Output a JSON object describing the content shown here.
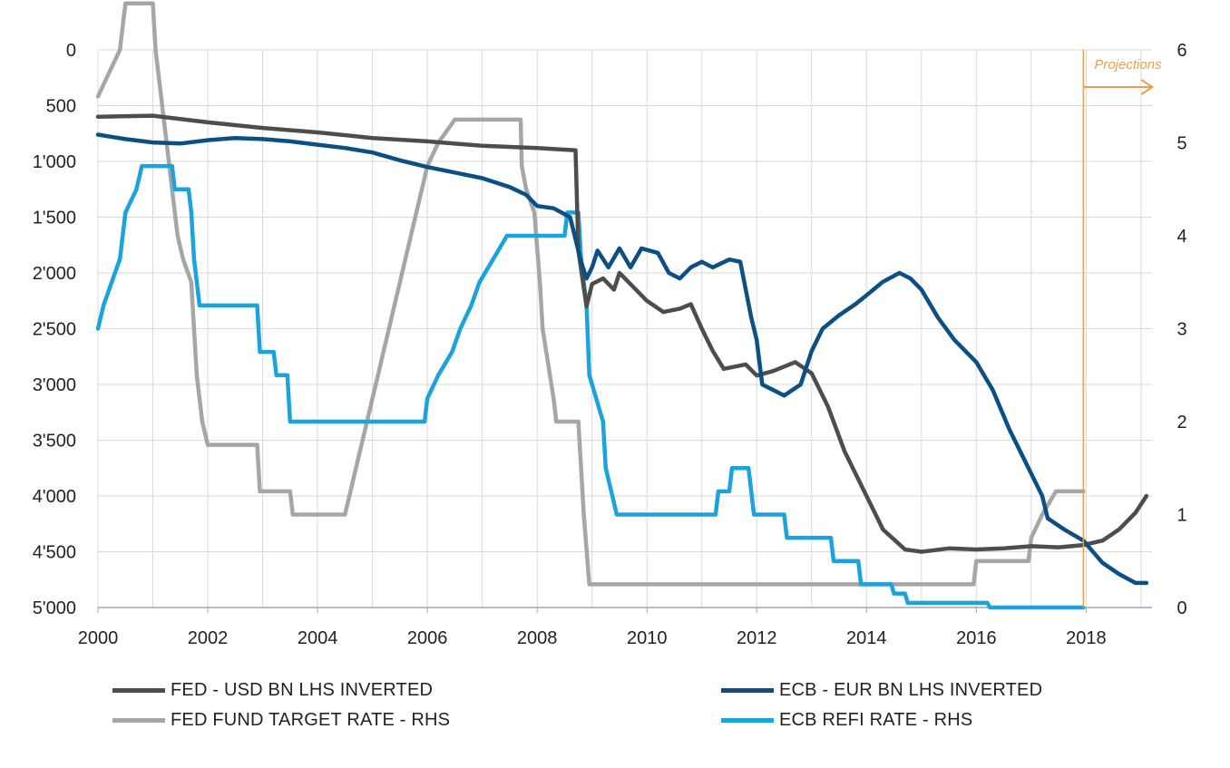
{
  "chart_data": {
    "type": "line",
    "x_ticks": [
      "2000",
      "2002",
      "2004",
      "2006",
      "2008",
      "2010",
      "2012",
      "2014",
      "2016",
      "2018"
    ],
    "x_range": [
      2000,
      2019.2
    ],
    "y_left": {
      "ticks": [
        "0",
        "500",
        "1'000",
        "1'500",
        "2'000",
        "2'500",
        "3'000",
        "3'500",
        "4'000",
        "4'500",
        "5'000"
      ],
      "range": [
        0,
        5000
      ],
      "inverted": true
    },
    "y_right": {
      "ticks": [
        "0",
        "1",
        "2",
        "3",
        "4",
        "5",
        "6"
      ],
      "range": [
        0,
        6
      ]
    },
    "grid": true,
    "annotation": {
      "text": "Projections",
      "x": 2017.95,
      "color": "#E8A050"
    },
    "series": [
      {
        "name": "FED - USD BN LHS INVERTED",
        "axis": "left",
        "color": "#4D4D4D",
        "points": [
          [
            2000.0,
            600
          ],
          [
            2001.0,
            590
          ],
          [
            2002.0,
            650
          ],
          [
            2003.0,
            700
          ],
          [
            2004.0,
            740
          ],
          [
            2005.0,
            790
          ],
          [
            2006.0,
            820
          ],
          [
            2007.0,
            860
          ],
          [
            2008.0,
            880
          ],
          [
            2008.7,
            900
          ],
          [
            2008.75,
            1800
          ],
          [
            2008.9,
            2300
          ],
          [
            2009.0,
            2100
          ],
          [
            2009.2,
            2050
          ],
          [
            2009.4,
            2150
          ],
          [
            2009.5,
            2000
          ],
          [
            2009.7,
            2100
          ],
          [
            2010.0,
            2250
          ],
          [
            2010.3,
            2350
          ],
          [
            2010.6,
            2320
          ],
          [
            2010.8,
            2280
          ],
          [
            2011.0,
            2500
          ],
          [
            2011.2,
            2700
          ],
          [
            2011.4,
            2860
          ],
          [
            2011.8,
            2820
          ],
          [
            2012.0,
            2920
          ],
          [
            2012.3,
            2880
          ],
          [
            2012.7,
            2800
          ],
          [
            2013.0,
            2900
          ],
          [
            2013.3,
            3200
          ],
          [
            2013.6,
            3600
          ],
          [
            2014.0,
            4000
          ],
          [
            2014.3,
            4300
          ],
          [
            2014.7,
            4480
          ],
          [
            2015.0,
            4500
          ],
          [
            2015.5,
            4470
          ],
          [
            2016.0,
            4480
          ],
          [
            2016.5,
            4470
          ],
          [
            2017.0,
            4450
          ],
          [
            2017.5,
            4460
          ],
          [
            2017.95,
            4440
          ],
          [
            2018.3,
            4400
          ],
          [
            2018.6,
            4300
          ],
          [
            2018.9,
            4150
          ],
          [
            2019.1,
            4000
          ]
        ]
      },
      {
        "name": "ECB - EUR BN LHS INVERTED",
        "axis": "left",
        "color": "#0B4F85",
        "points": [
          [
            2000.0,
            760
          ],
          [
            2000.5,
            800
          ],
          [
            2001.0,
            830
          ],
          [
            2001.5,
            840
          ],
          [
            2002.0,
            810
          ],
          [
            2002.5,
            790
          ],
          [
            2003.0,
            800
          ],
          [
            2003.5,
            820
          ],
          [
            2004.0,
            850
          ],
          [
            2004.5,
            880
          ],
          [
            2005.0,
            920
          ],
          [
            2005.5,
            990
          ],
          [
            2006.0,
            1050
          ],
          [
            2006.5,
            1100
          ],
          [
            2007.0,
            1150
          ],
          [
            2007.5,
            1230
          ],
          [
            2007.8,
            1300
          ],
          [
            2008.0,
            1400
          ],
          [
            2008.3,
            1420
          ],
          [
            2008.6,
            1500
          ],
          [
            2008.8,
            1900
          ],
          [
            2008.9,
            2050
          ],
          [
            2009.0,
            1950
          ],
          [
            2009.1,
            1800
          ],
          [
            2009.3,
            1950
          ],
          [
            2009.5,
            1780
          ],
          [
            2009.7,
            1950
          ],
          [
            2009.9,
            1780
          ],
          [
            2010.2,
            1820
          ],
          [
            2010.4,
            2000
          ],
          [
            2010.6,
            2050
          ],
          [
            2010.8,
            1950
          ],
          [
            2011.0,
            1900
          ],
          [
            2011.2,
            1950
          ],
          [
            2011.5,
            1880
          ],
          [
            2011.7,
            1900
          ],
          [
            2011.9,
            2400
          ],
          [
            2012.0,
            2600
          ],
          [
            2012.1,
            3000
          ],
          [
            2012.3,
            3050
          ],
          [
            2012.5,
            3100
          ],
          [
            2012.8,
            3000
          ],
          [
            2013.0,
            2700
          ],
          [
            2013.2,
            2500
          ],
          [
            2013.5,
            2380
          ],
          [
            2013.8,
            2280
          ],
          [
            2014.0,
            2200
          ],
          [
            2014.3,
            2080
          ],
          [
            2014.6,
            2000
          ],
          [
            2014.8,
            2050
          ],
          [
            2015.0,
            2150
          ],
          [
            2015.3,
            2400
          ],
          [
            2015.6,
            2600
          ],
          [
            2016.0,
            2800
          ],
          [
            2016.3,
            3050
          ],
          [
            2016.6,
            3400
          ],
          [
            2017.0,
            3800
          ],
          [
            2017.2,
            4000
          ],
          [
            2017.3,
            4200
          ],
          [
            2017.6,
            4300
          ],
          [
            2017.95,
            4400
          ],
          [
            2018.3,
            4600
          ],
          [
            2018.6,
            4700
          ],
          [
            2018.9,
            4780
          ],
          [
            2019.1,
            4780
          ]
        ]
      },
      {
        "name": "FED FUND TARGET RATE - RHS",
        "axis": "right",
        "color": "#A6A6A6",
        "points": [
          [
            2000.0,
            5.5
          ],
          [
            2000.2,
            5.75
          ],
          [
            2000.4,
            6.0
          ],
          [
            2000.5,
            6.5
          ],
          [
            2001.0,
            6.5
          ],
          [
            2001.05,
            6.0
          ],
          [
            2001.15,
            5.5
          ],
          [
            2001.25,
            5.0
          ],
          [
            2001.35,
            4.5
          ],
          [
            2001.45,
            4.0
          ],
          [
            2001.55,
            3.75
          ],
          [
            2001.7,
            3.5
          ],
          [
            2001.75,
            3.0
          ],
          [
            2001.8,
            2.5
          ],
          [
            2001.9,
            2.0
          ],
          [
            2002.0,
            1.75
          ],
          [
            2002.9,
            1.75
          ],
          [
            2002.95,
            1.25
          ],
          [
            2003.5,
            1.25
          ],
          [
            2003.55,
            1.0
          ],
          [
            2004.5,
            1.0
          ],
          [
            2004.6,
            1.25
          ],
          [
            2004.7,
            1.5
          ],
          [
            2004.8,
            1.75
          ],
          [
            2004.9,
            2.0
          ],
          [
            2005.0,
            2.25
          ],
          [
            2005.1,
            2.5
          ],
          [
            2005.2,
            2.75
          ],
          [
            2005.3,
            3.0
          ],
          [
            2005.4,
            3.25
          ],
          [
            2005.5,
            3.5
          ],
          [
            2005.6,
            3.75
          ],
          [
            2005.7,
            4.0
          ],
          [
            2005.8,
            4.25
          ],
          [
            2005.9,
            4.5
          ],
          [
            2006.0,
            4.75
          ],
          [
            2006.2,
            5.0
          ],
          [
            2006.5,
            5.25
          ],
          [
            2007.7,
            5.25
          ],
          [
            2007.72,
            4.75
          ],
          [
            2007.8,
            4.5
          ],
          [
            2007.95,
            4.25
          ],
          [
            2008.05,
            3.5
          ],
          [
            2008.1,
            3.0
          ],
          [
            2008.3,
            2.25
          ],
          [
            2008.35,
            2.0
          ],
          [
            2008.75,
            2.0
          ],
          [
            2008.8,
            1.5
          ],
          [
            2008.85,
            1.0
          ],
          [
            2008.95,
            0.25
          ],
          [
            2015.95,
            0.25
          ],
          [
            2016.0,
            0.5
          ],
          [
            2016.95,
            0.5
          ],
          [
            2017.0,
            0.75
          ],
          [
            2017.2,
            1.0
          ],
          [
            2017.45,
            1.25
          ],
          [
            2017.95,
            1.25
          ]
        ]
      },
      {
        "name": "ECB REFI RATE - RHS",
        "axis": "right",
        "color": "#1AA3DC",
        "points": [
          [
            2000.0,
            3.0
          ],
          [
            2000.1,
            3.25
          ],
          [
            2000.25,
            3.5
          ],
          [
            2000.4,
            3.75
          ],
          [
            2000.5,
            4.25
          ],
          [
            2000.7,
            4.5
          ],
          [
            2000.8,
            4.75
          ],
          [
            2001.35,
            4.75
          ],
          [
            2001.4,
            4.5
          ],
          [
            2001.65,
            4.5
          ],
          [
            2001.7,
            4.25
          ],
          [
            2001.75,
            3.75
          ],
          [
            2001.85,
            3.25
          ],
          [
            2002.9,
            3.25
          ],
          [
            2002.95,
            2.75
          ],
          [
            2003.2,
            2.75
          ],
          [
            2003.25,
            2.5
          ],
          [
            2003.45,
            2.5
          ],
          [
            2003.5,
            2.0
          ],
          [
            2005.95,
            2.0
          ],
          [
            2006.0,
            2.25
          ],
          [
            2006.2,
            2.5
          ],
          [
            2006.45,
            2.75
          ],
          [
            2006.6,
            3.0
          ],
          [
            2006.8,
            3.25
          ],
          [
            2006.95,
            3.5
          ],
          [
            2007.2,
            3.75
          ],
          [
            2007.45,
            4.0
          ],
          [
            2008.5,
            4.0
          ],
          [
            2008.55,
            4.25
          ],
          [
            2008.75,
            4.25
          ],
          [
            2008.8,
            3.75
          ],
          [
            2008.9,
            3.25
          ],
          [
            2008.95,
            2.5
          ],
          [
            2009.2,
            2.0
          ],
          [
            2009.25,
            1.5
          ],
          [
            2009.35,
            1.25
          ],
          [
            2009.45,
            1.0
          ],
          [
            2011.25,
            1.0
          ],
          [
            2011.3,
            1.25
          ],
          [
            2011.5,
            1.25
          ],
          [
            2011.55,
            1.5
          ],
          [
            2011.85,
            1.5
          ],
          [
            2011.9,
            1.25
          ],
          [
            2011.95,
            1.0
          ],
          [
            2012.5,
            1.0
          ],
          [
            2012.55,
            0.75
          ],
          [
            2013.35,
            0.75
          ],
          [
            2013.4,
            0.5
          ],
          [
            2013.85,
            0.5
          ],
          [
            2013.9,
            0.25
          ],
          [
            2014.45,
            0.25
          ],
          [
            2014.5,
            0.15
          ],
          [
            2014.7,
            0.15
          ],
          [
            2014.75,
            0.05
          ],
          [
            2016.2,
            0.05
          ],
          [
            2016.25,
            0.0
          ],
          [
            2017.95,
            0.0
          ]
        ]
      }
    ]
  }
}
